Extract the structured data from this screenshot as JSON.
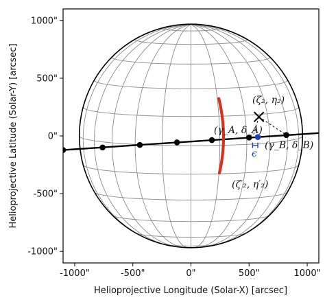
{
  "chart_data": {
    "type": "diagram",
    "xlabel": "Helioprojective Longitude (Solar-X) [arcsec]",
    "ylabel": "Helioprojective Latitude (Solar-Y) [arcsec]",
    "xlim": [
      -1100,
      1100
    ],
    "ylim": [
      -1100,
      1100
    ],
    "x_ticks": [
      {
        "value": -1000,
        "label": "-1000\""
      },
      {
        "value": -500,
        "label": "-500\""
      },
      {
        "value": 0,
        "label": "0\""
      },
      {
        "value": 500,
        "label": "500\""
      },
      {
        "value": 1000,
        "label": "1000\""
      }
    ],
    "y_ticks": [
      {
        "value": 1000,
        "label": "1000\""
      },
      {
        "value": 500,
        "label": "500\""
      },
      {
        "value": 0,
        "label": "0\""
      },
      {
        "value": -500,
        "label": "-500\""
      },
      {
        "value": -1000,
        "label": "-1000\""
      }
    ],
    "solar_radius": 960,
    "grid": {
      "meridians_step_deg": 15,
      "parallels_step_deg": 15,
      "b0_deg": 5
    },
    "track": {
      "line": [
        [
          -1100,
          -122
        ],
        [
          1100,
          25
        ]
      ],
      "points": [
        [
          -1100,
          -122
        ],
        [
          -760,
          -100
        ],
        [
          -440,
          -78
        ],
        [
          -120,
          -56
        ],
        [
          180,
          -36
        ],
        [
          500,
          -14
        ],
        [
          820,
          8
        ]
      ]
    },
    "blue_point": {
      "x": 575,
      "y": -10
    },
    "red_arc": {
      "center": [
        -1090,
        -10
      ],
      "radius": 1370,
      "start_deg": -13,
      "end_deg": 14
    },
    "cross_point": {
      "x": 585,
      "y": 165
    },
    "dashed_to": {
      "x": 820,
      "y": 8
    },
    "labels": {
      "zeta2": "(ζ₂, η₂)",
      "gammaA": "(γ_A, δ_A)",
      "gammaB": "(γ_B, δ_B)",
      "zeta2prime": "(ζ′₂, η′₂)",
      "epsilon": "ϵ"
    },
    "colors": {
      "track": "#000000",
      "arc": "#d8301e",
      "blue": "#1f3fbf",
      "grid": "#8a8a8a"
    }
  }
}
